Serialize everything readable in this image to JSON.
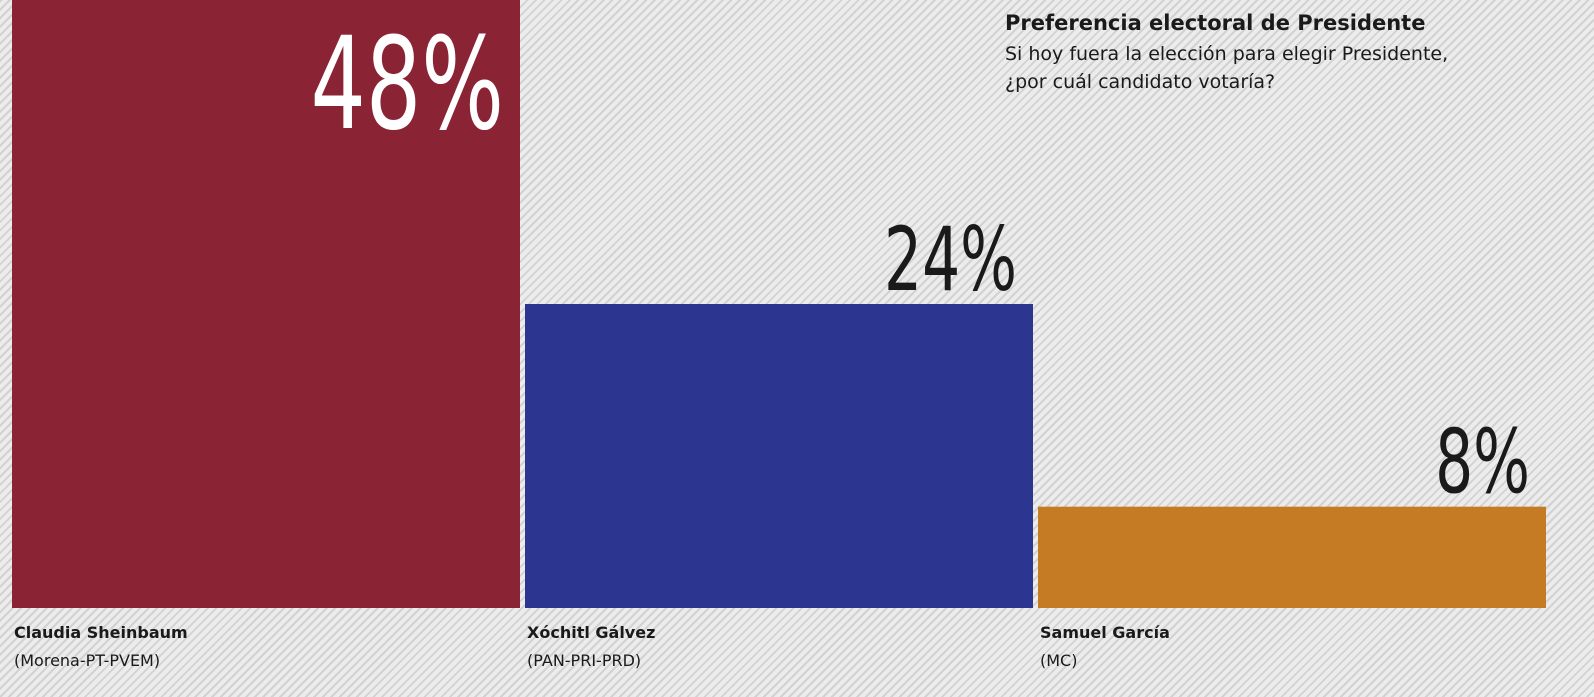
{
  "chart_data": {
    "type": "bar",
    "title": "Preferencia electoral de Presidente",
    "subtitle": [
      "Si hoy fuera la elección para elegir Presidente,",
      "¿por cuál candidato votaría?"
    ],
    "categories": [
      "Claudia Sheinbaum",
      "Xóchitl Gálvez",
      "Samuel García"
    ],
    "parties": [
      "(Morena-PT-PVEM)",
      "(PAN-PRI-PRD)",
      "(MC)"
    ],
    "values": [
      48,
      24,
      8
    ],
    "value_labels": [
      "48%",
      "24%",
      "8%"
    ],
    "colors": [
      "#8a2435",
      "#2c3590",
      "#c47b24"
    ]
  }
}
